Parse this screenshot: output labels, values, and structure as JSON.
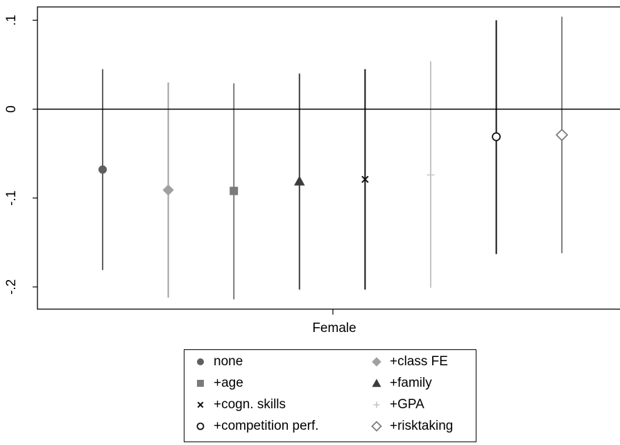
{
  "chart_data": {
    "type": "scatter",
    "subtype": "coefficient-plot-with-confidence-intervals",
    "xlabel": "Female",
    "ylabel": "",
    "title": "",
    "ylim": [
      -0.225,
      0.115
    ],
    "yticks": [
      {
        "value": 0.1,
        "label": ".1"
      },
      {
        "value": 0.0,
        "label": "0"
      },
      {
        "value": -0.1,
        "label": "-.1"
      },
      {
        "value": -0.2,
        "label": "-.2"
      }
    ],
    "reference_line": 0,
    "legend_position": "bottom",
    "series": [
      {
        "name": "none",
        "estimate": -0.068,
        "ci": [
          -0.181,
          0.045
        ],
        "color": "#5f5f5f",
        "marker": "circle-filled"
      },
      {
        "name": "+class FE",
        "estimate": -0.091,
        "ci": [
          -0.212,
          0.03
        ],
        "color": "#a0a0a0",
        "marker": "diamond-filled"
      },
      {
        "name": "+age",
        "estimate": -0.092,
        "ci": [
          -0.214,
          0.029
        ],
        "color": "#7a7a7a",
        "marker": "square-filled"
      },
      {
        "name": "+family",
        "estimate": -0.081,
        "ci": [
          -0.203,
          0.04
        ],
        "color": "#3c3c3c",
        "marker": "triangle-filled"
      },
      {
        "name": "+cogn. skills",
        "estimate": -0.079,
        "ci": [
          -0.203,
          0.045
        ],
        "color": "#111111",
        "marker": "x"
      },
      {
        "name": "+GPA",
        "estimate": -0.074,
        "ci": [
          -0.201,
          0.054
        ],
        "color": "#c4c4c4",
        "marker": "plus"
      },
      {
        "name": "+competition perf.",
        "estimate": -0.031,
        "ci": [
          -0.163,
          0.1
        ],
        "color": "#111111",
        "marker": "circle-hollow"
      },
      {
        "name": "+risktaking",
        "estimate": -0.029,
        "ci": [
          -0.162,
          0.104
        ],
        "color": "#7a7a7a",
        "marker": "diamond-hollow"
      }
    ]
  },
  "legend": {
    "items": [
      {
        "label": "none",
        "marker": "circle-filled",
        "color": "#5f5f5f"
      },
      {
        "label": "+class FE",
        "marker": "diamond-filled",
        "color": "#a0a0a0"
      },
      {
        "label": "+age",
        "marker": "square-filled",
        "color": "#7a7a7a"
      },
      {
        "label": "+family",
        "marker": "triangle-filled",
        "color": "#3c3c3c"
      },
      {
        "label": "+cogn. skills",
        "marker": "x",
        "color": "#111111"
      },
      {
        "label": "+GPA",
        "marker": "plus",
        "color": "#c4c4c4"
      },
      {
        "label": "+competition perf.",
        "marker": "circle-hollow",
        "color": "#111111"
      },
      {
        "label": "+risktaking",
        "marker": "diamond-hollow",
        "color": "#7a7a7a"
      }
    ]
  }
}
